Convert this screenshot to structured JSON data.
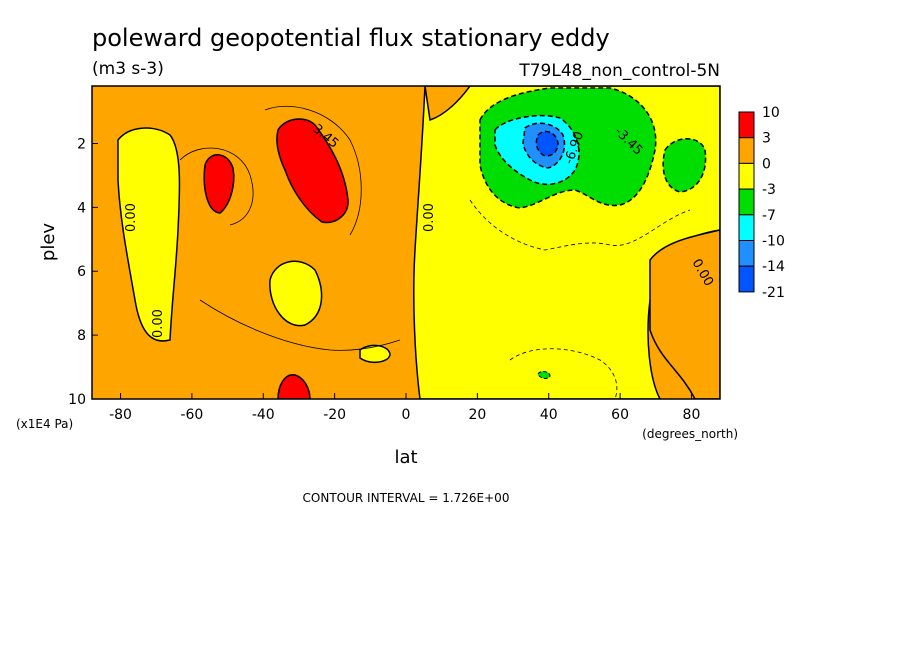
{
  "chart_data": {
    "type": "heatmap",
    "title": "poleward geopotential flux stationary eddy",
    "units": "(m3 s-3)",
    "run_label": "T79L48_non_control-5N",
    "xlabel": "lat",
    "x_units": "(degrees_north)",
    "ylabel": "plev",
    "y_units": "(x1E4 Pa)",
    "xlim": [
      -88,
      88
    ],
    "ylim": [
      10,
      0.2
    ],
    "x_ticks": [
      -80,
      -60,
      -40,
      -20,
      0,
      20,
      40,
      60,
      80
    ],
    "y_ticks": [
      2,
      4,
      6,
      8,
      10
    ],
    "contour_interval_text": "CONTOUR INTERVAL = 1.726E+00",
    "colorbar": {
      "labels": [
        "10",
        "3",
        "0",
        "-3",
        "-7",
        "-10",
        "-14",
        "-21"
      ],
      "colors": [
        "#ff0000",
        "#ffa500",
        "#ffff00",
        "#00dd00",
        "#00ffff",
        "#1e90ff",
        "#0055ff"
      ]
    },
    "contour_labels": [
      "0.00",
      "0.00",
      "0.00",
      "0.00",
      "3.45",
      "-6.90",
      "-3.45"
    ],
    "regions": [
      {
        "level": "0 to 3",
        "color": "#ffa500",
        "lat": [
          -88,
          88
        ],
        "plev": [
          0.2,
          10
        ]
      },
      {
        "level": "-3 to 0",
        "color": "#ffff00",
        "lat": [
          -78,
          -65
        ],
        "plev": [
          1.5,
          8
        ]
      },
      {
        "level": "-3 to 0",
        "color": "#ffff00",
        "lat": [
          4,
          88
        ],
        "plev": [
          0.2,
          10
        ]
      },
      {
        "level": "3 to 10",
        "color": "#ff0000",
        "lat": [
          -36,
          -18
        ],
        "plev": [
          1.1,
          4.4
        ]
      },
      {
        "level": "3 to 10",
        "color": "#ff0000",
        "lat": [
          -58,
          -50
        ],
        "plev": [
          2.4,
          4.1
        ]
      },
      {
        "level": "3 to 10",
        "color": "#ff0000",
        "lat": [
          -37,
          -30
        ],
        "plev": [
          9.2,
          10
        ]
      },
      {
        "level": "-7 to -3",
        "color": "#00dd00",
        "lat": [
          20,
          65
        ],
        "plev": [
          0.2,
          4
        ]
      },
      {
        "level": "-7 to -3",
        "color": "#00dd00",
        "lat": [
          68,
          82
        ],
        "plev": [
          1.7,
          3.5
        ]
      },
      {
        "level": "-10 to -7",
        "color": "#00ffff",
        "lat": [
          25,
          50
        ],
        "plev": [
          1.0,
          3.3
        ]
      },
      {
        "level": "-14 to -10",
        "color": "#1e90ff",
        "lat": [
          35,
          45
        ],
        "plev": [
          1.3,
          2.6
        ]
      },
      {
        "level": "-21 to -14",
        "color": "#0055ff",
        "lat": [
          37,
          43
        ],
        "plev": [
          1.5,
          2.3
        ]
      }
    ]
  }
}
